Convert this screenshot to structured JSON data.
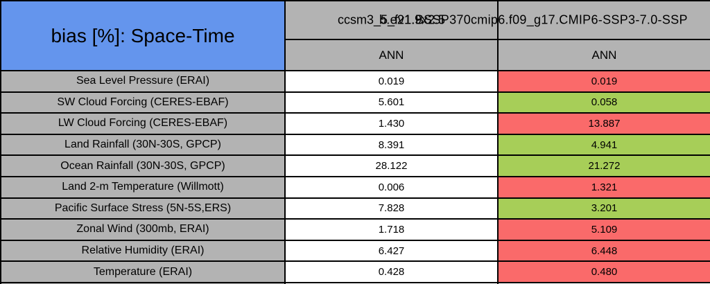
{
  "table": {
    "title": "bias [%]: Space-Time",
    "columns": [
      {
        "model": "ccsm3_5_fv1.9x2.5",
        "season": "ANN"
      },
      {
        "model": "b.e21.BSSP370cmip6.f09_g17.CMIP6-SSP3-7.0-SSP",
        "season": "ANN"
      }
    ],
    "colors": {
      "title_bg": "#6495ED",
      "header_gray": "#B3B3B3",
      "label_gray": "#B3B3B3",
      "worse_red": "#FA6A6A",
      "better_green": "#A7CE58",
      "neutral": "#FFFFFF",
      "border": "#000000"
    },
    "rows": [
      {
        "label": "Sea Level Pressure (ERAI)",
        "values": [
          "0.019",
          "0.019"
        ],
        "col2_status": "red",
        "col2_bg": "#FA6A6A"
      },
      {
        "label": "SW Cloud Forcing (CERES-EBAF)",
        "values": [
          "5.601",
          "0.058"
        ],
        "col2_status": "green",
        "col2_bg": "#A7CE58"
      },
      {
        "label": "LW Cloud Forcing (CERES-EBAF)",
        "values": [
          "1.430",
          "13.887"
        ],
        "col2_status": "red",
        "col2_bg": "#FA6A6A"
      },
      {
        "label": "Land Rainfall (30N-30S, GPCP)",
        "values": [
          "8.391",
          "4.941"
        ],
        "col2_status": "green",
        "col2_bg": "#A7CE58"
      },
      {
        "label": "Ocean Rainfall (30N-30S, GPCP)",
        "values": [
          "28.122",
          "21.272"
        ],
        "col2_status": "green",
        "col2_bg": "#A7CE58"
      },
      {
        "label": "Land 2-m Temperature (Willmott)",
        "values": [
          "0.006",
          "1.321"
        ],
        "col2_status": "red",
        "col2_bg": "#FA6A6A"
      },
      {
        "label": "Pacific Surface Stress (5N-5S,ERS)",
        "values": [
          "7.828",
          "3.201"
        ],
        "col2_status": "green",
        "col2_bg": "#A7CE58"
      },
      {
        "label": "Zonal Wind (300mb, ERAI)",
        "values": [
          "1.718",
          "5.109"
        ],
        "col2_status": "red",
        "col2_bg": "#FA6A6A"
      },
      {
        "label": "Relative Humidity (ERAI)",
        "values": [
          "6.427",
          "6.448"
        ],
        "col2_status": "red",
        "col2_bg": "#FA6A6A"
      },
      {
        "label": "Temperature (ERAI)",
        "values": [
          "0.428",
          "0.480"
        ],
        "col2_status": "red",
        "col2_bg": "#FA6A6A"
      }
    ]
  },
  "chart_data": {
    "type": "table",
    "title": "bias [%]: Space-Time",
    "columns": [
      "ccsm3_5_fv1.9x2.5",
      "b.e21.BSSP370cmip6.f09_g17.CMIP6-SSP3-7.0-SSP"
    ],
    "subcolumns": [
      "ANN",
      "ANN"
    ],
    "row_metrics": [
      "Sea Level Pressure (ERAI)",
      "SW Cloud Forcing (CERES-EBAF)",
      "LW Cloud Forcing (CERES-EBAF)",
      "Land Rainfall (30N-30S, GPCP)",
      "Ocean Rainfall (30N-30S, GPCP)",
      "Land 2-m Temperature (Willmott)",
      "Pacific Surface Stress (5N-5S,ERS)",
      "Zonal Wind (300mb, ERAI)",
      "Relative Humidity (ERAI)",
      "Temperature (ERAI)"
    ],
    "values": [
      [
        0.019,
        0.019
      ],
      [
        5.601,
        0.058
      ],
      [
        1.43,
        13.887
      ],
      [
        8.391,
        4.941
      ],
      [
        28.122,
        21.272
      ],
      [
        0.006,
        1.321
      ],
      [
        7.828,
        3.201
      ],
      [
        1.718,
        5.109
      ],
      [
        6.427,
        6.448
      ],
      [
        0.428,
        0.48
      ]
    ],
    "cell_highlight_col2": [
      "red",
      "green",
      "red",
      "green",
      "green",
      "red",
      "green",
      "red",
      "red",
      "red"
    ]
  }
}
